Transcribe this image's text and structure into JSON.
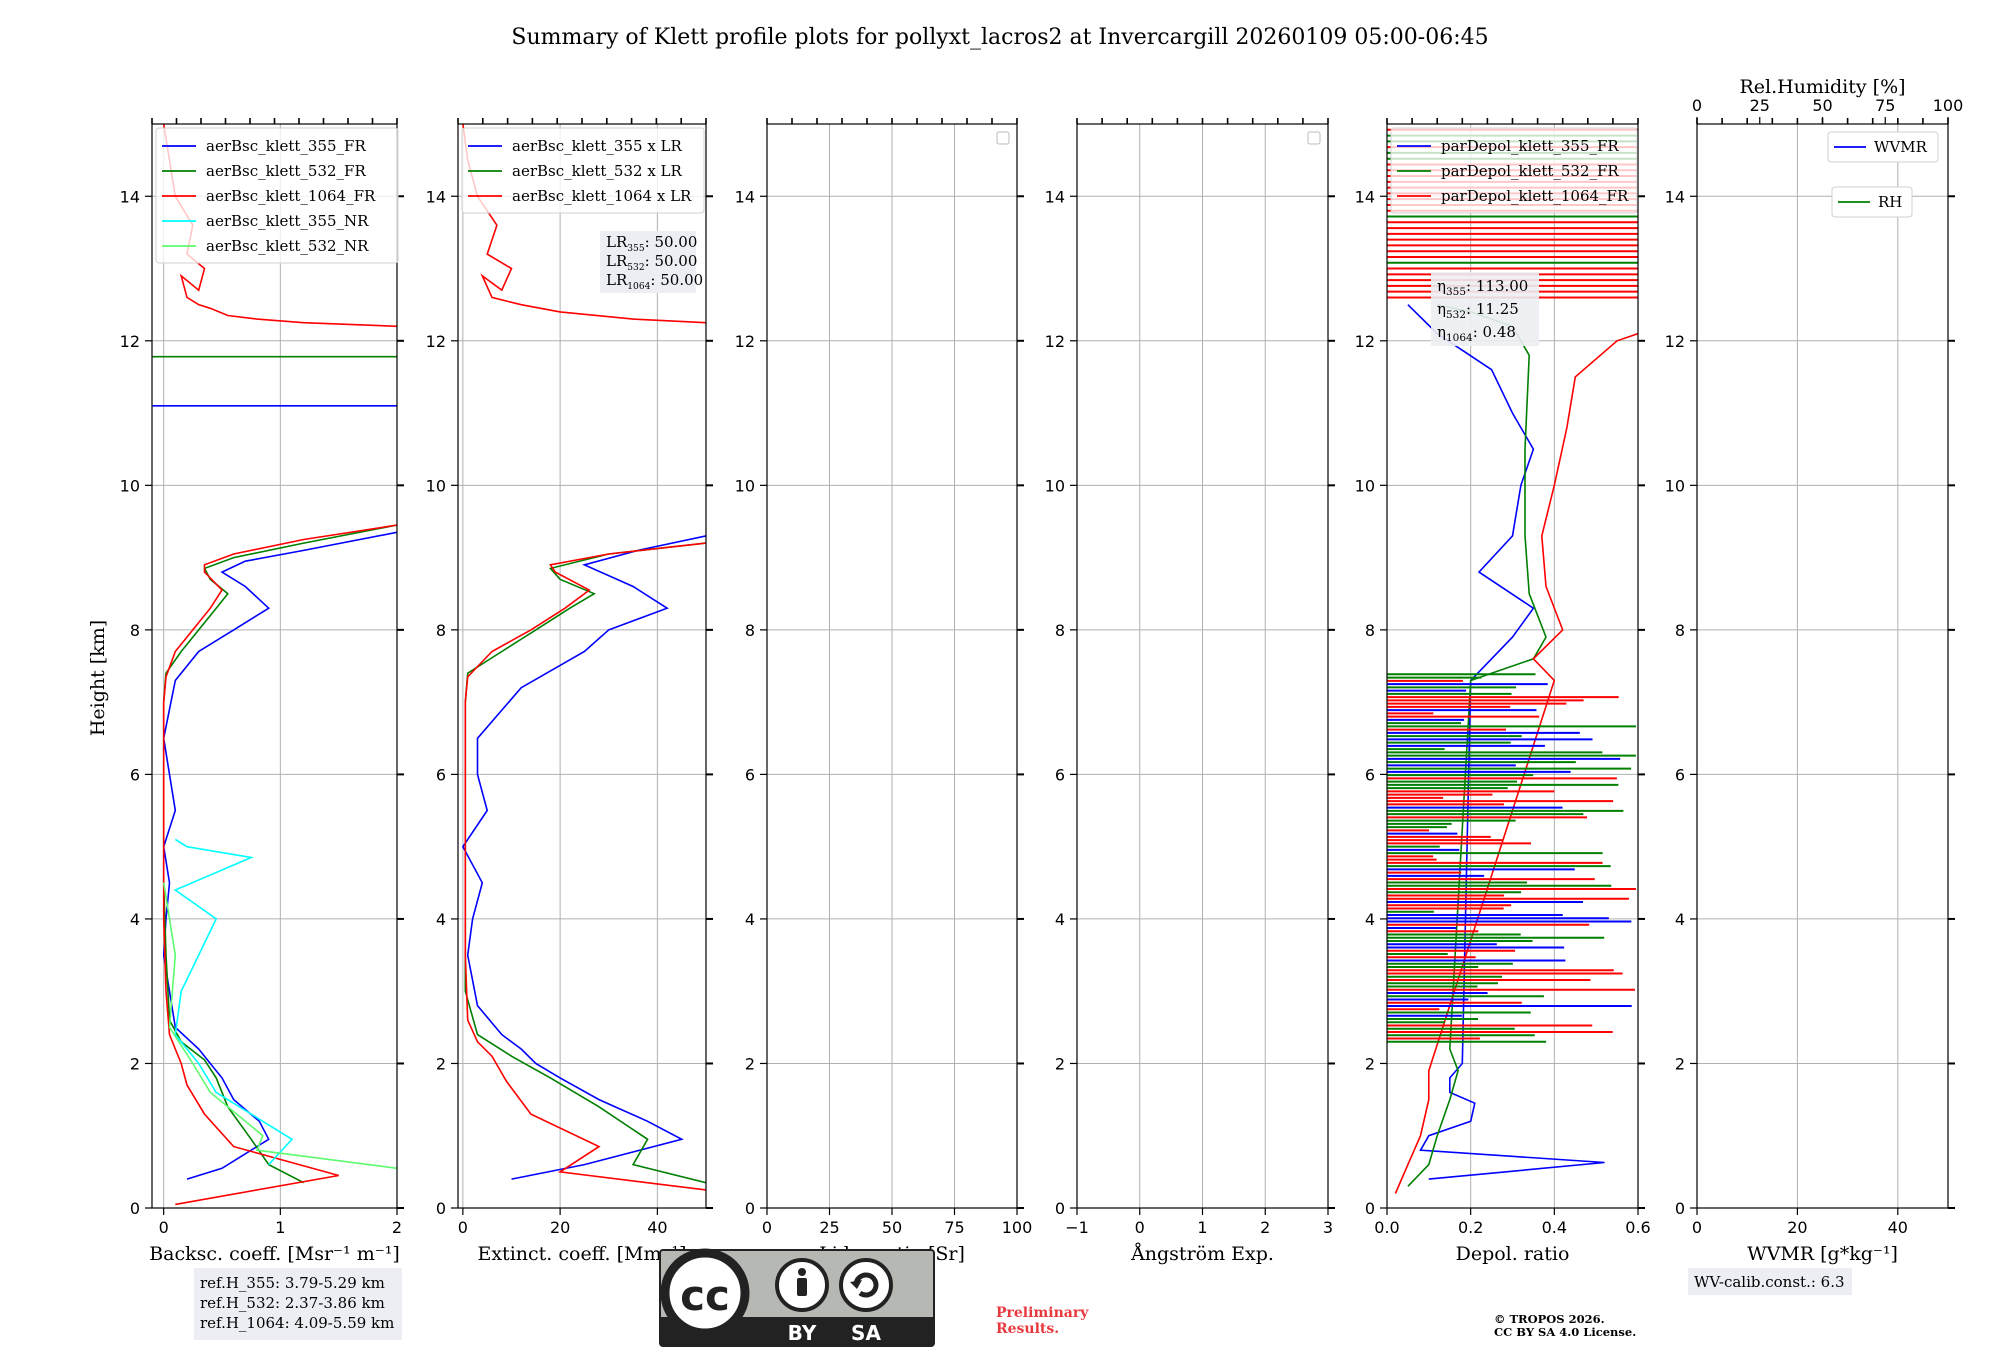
{
  "title": "Summary of Klett profile plots for pollyxt_lacros2 at Invercargill 20260109 05:00-06:45",
  "y_label": "Height [km]",
  "y_range": [
    0,
    15
  ],
  "y_ticks": [
    "0",
    "2",
    "4",
    "6",
    "8",
    "10",
    "12",
    "14"
  ],
  "colors": {
    "c355": "#0000ff",
    "c532": "#008000",
    "c1064": "#ff0000",
    "c355nr": "#00ffff",
    "c532nr": "#5dfc6e"
  },
  "panels": [
    {
      "id": "backscatter",
      "xlabel": "Backsc. coeff. [Msr⁻¹ m⁻¹]",
      "xlim": [
        -0.1,
        2.0
      ],
      "xticks": [
        {
          "v": 0,
          "t": "0"
        },
        {
          "v": 1,
          "t": "1"
        },
        {
          "v": 2,
          "t": "2"
        }
      ],
      "legend": [
        "aerBsc_klett_355_FR",
        "aerBsc_klett_532_FR",
        "aerBsc_klett_1064_FR",
        "aerBsc_klett_355_NR",
        "aerBsc_klett_532_NR"
      ],
      "info": [
        "ref.H_355: 3.79-5.29 km",
        "ref.H_532: 2.37-3.86 km",
        "ref.H_1064: 4.09-5.59 km"
      ]
    },
    {
      "id": "extinction",
      "xlabel": "Extinct. coeff. [Mm⁻¹]",
      "xlim": [
        -1,
        50
      ],
      "xticks": [
        {
          "v": 0,
          "t": "0"
        },
        {
          "v": 20,
          "t": "20"
        },
        {
          "v": 40,
          "t": "40"
        }
      ],
      "legend": [
        "aerBsc_klett_355 x LR",
        "aerBsc_klett_532 x LR",
        "aerBsc_klett_1064 x LR"
      ],
      "lr_box": [
        "LR355: 50.00",
        "LR532: 50.00",
        "LR1064: 50.00"
      ]
    },
    {
      "id": "lidar-ratio",
      "xlabel": "Lidar ratio [Sr]",
      "xlim": [
        0,
        100
      ],
      "xticks": [
        {
          "v": 0,
          "t": "0"
        },
        {
          "v": 25,
          "t": "25"
        },
        {
          "v": 50,
          "t": "50"
        },
        {
          "v": 75,
          "t": "75"
        },
        {
          "v": 100,
          "t": "100"
        }
      ]
    },
    {
      "id": "angstrom",
      "xlabel": "Ångström Exp.",
      "xlim": [
        -1,
        3
      ],
      "xticks": [
        {
          "v": -1,
          "t": "−1"
        },
        {
          "v": 0,
          "t": "0"
        },
        {
          "v": 1,
          "t": "1"
        },
        {
          "v": 2,
          "t": "2"
        },
        {
          "v": 3,
          "t": "3"
        }
      ]
    },
    {
      "id": "depol",
      "xlabel": "Depol. ratio",
      "xlim": [
        0,
        0.6
      ],
      "xticks": [
        {
          "v": 0,
          "t": "0.0"
        },
        {
          "v": 0.2,
          "t": "0.2"
        },
        {
          "v": 0.4,
          "t": "0.4"
        },
        {
          "v": 0.6,
          "t": "0.6"
        }
      ],
      "legend": [
        "parDepol_klett_355_FR",
        "parDepol_klett_532_FR",
        "parDepol_klett_1064_FR"
      ],
      "eta": [
        "η355: 113.00",
        "η532: 11.25",
        "η1064: 0.48"
      ]
    },
    {
      "id": "wvmr",
      "xlabel": "WVMR [g*kg⁻¹]",
      "xlim": [
        0,
        50
      ],
      "xticks": [
        {
          "v": 0,
          "t": "0"
        },
        {
          "v": 20,
          "t": "20"
        },
        {
          "v": 40,
          "t": "40"
        }
      ],
      "top_label": "Rel.Humidity [%]",
      "top_ticks": [
        {
          "v": 0,
          "t": "0"
        },
        {
          "v": 25,
          "t": "25"
        },
        {
          "v": 50,
          "t": "50"
        },
        {
          "v": 75,
          "t": "75"
        },
        {
          "v": 100,
          "t": "100"
        }
      ],
      "legend": [
        "WVMR",
        "RH"
      ],
      "info": "WV-calib.const.: 6.3"
    }
  ],
  "license": {
    "cc": "cc",
    "by": "BY",
    "sa": "SA"
  },
  "preliminary": [
    "Preliminary",
    "Results."
  ],
  "copyright": [
    "© TROPOS 2026.",
    "CC BY SA 4.0 License."
  ],
  "chart_data": {
    "type": "line",
    "title": "Summary of Klett profile plots for pollyxt_lacros2 at Invercargill 20260109 05:00-06:45",
    "ylabel": "Height [km]",
    "ylim": [
      0,
      15
    ],
    "panels": [
      {
        "name": "Backscatter",
        "xlabel": "Backsc. coeff. [Msr-1 m-1]",
        "xlim": [
          -0.1,
          2
        ],
        "series": [
          {
            "name": "aerBsc_klett_355_FR",
            "color": "#0000ff",
            "x": [
              0.2,
              0.5,
              0.9,
              0.82,
              0.6,
              0.5,
              0.4,
              0.3,
              0.1,
              0.05,
              0.0,
              0.02,
              0.05,
              0.0,
              0.1,
              0.05,
              0.0,
              0.1,
              0.3,
              0.6,
              0.9,
              0.7,
              0.5,
              0.7,
              1.2,
              2.0
            ],
            "y": [
              0.4,
              0.55,
              0.95,
              1.2,
              1.5,
              1.8,
              2.0,
              2.2,
              2.5,
              3.0,
              3.5,
              4.0,
              4.5,
              5.0,
              5.5,
              6.0,
              6.5,
              7.3,
              7.7,
              8.0,
              8.3,
              8.6,
              8.8,
              8.95,
              9.1,
              9.35
            ],
            "segments": [
              {
                "x": [
                  -0.1,
                  2.0
                ],
                "y": [
                  11.1,
                  11.1
                ]
              }
            ]
          },
          {
            "name": "aerBsc_klett_532_FR",
            "color": "#008000",
            "x": [
              1.2,
              0.9,
              0.75,
              0.55,
              0.45,
              0.35,
              0.15,
              0.05,
              0.02,
              0.0,
              0.0,
              0.0,
              0.02,
              0.15,
              0.3,
              0.45,
              0.55,
              0.4,
              0.35,
              0.6,
              1.2,
              2.0
            ],
            "y": [
              0.35,
              0.6,
              0.95,
              1.4,
              1.8,
              2.05,
              2.3,
              2.6,
              3.5,
              4.5,
              6.0,
              7.0,
              7.4,
              7.7,
              8.0,
              8.3,
              8.5,
              8.7,
              8.85,
              9.0,
              9.2,
              9.45
            ],
            "segments": [
              {
                "x": [
                  -0.1,
                  2.0
                ],
                "y": [
                  11.78,
                  11.78
                ]
              }
            ]
          },
          {
            "name": "aerBsc_klett_1064_FR",
            "color": "#ff0000",
            "x": [
              0.1,
              1.5,
              0.6,
              0.35,
              0.2,
              0.15,
              0.1,
              0.05,
              0.02,
              0.0,
              0.0,
              0.0,
              0.02,
              0.1,
              0.25,
              0.4,
              0.5,
              0.35,
              0.35,
              0.6,
              1.2,
              2.0
            ],
            "y": [
              0.05,
              0.45,
              0.85,
              1.3,
              1.7,
              2.0,
              2.2,
              2.4,
              3.0,
              4.0,
              5.5,
              7.0,
              7.35,
              7.7,
              8.0,
              8.3,
              8.55,
              8.8,
              8.9,
              9.05,
              9.25,
              9.45
            ],
            "segments": [
              {
                "x": [
                  0.0,
                  0.05,
                  0.1,
                  0.25,
                  0.2,
                  0.35,
                  0.3,
                  0.15,
                  0.2,
                  0.3,
                  0.4,
                  0.55,
                  0.8,
                  1.2,
                  2.0
                ],
                "y": [
                  15.0,
                  14.5,
                  14.0,
                  13.6,
                  13.2,
                  13.0,
                  12.7,
                  12.9,
                  12.6,
                  12.5,
                  12.45,
                  12.35,
                  12.3,
                  12.25,
                  12.2
                ]
              }
            ]
          },
          {
            "name": "aerBsc_klett_355_NR",
            "color": "#00ffff",
            "x": [
              0.9,
              1.1,
              0.85,
              0.45,
              0.3,
              0.1,
              0.15,
              0.3,
              0.45,
              0.1,
              0.75,
              0.2,
              0.1
            ],
            "y": [
              0.6,
              0.95,
              1.2,
              1.6,
              2.0,
              2.4,
              3.0,
              3.5,
              4.0,
              4.4,
              4.85,
              5.0,
              5.1
            ]
          },
          {
            "name": "aerBsc_klett_532_NR",
            "color": "#5dfc6e",
            "x": [
              2.0,
              0.8,
              0.85,
              0.4,
              0.25,
              0.05,
              0.1,
              0.0
            ],
            "y": [
              0.55,
              0.8,
              1.0,
              1.6,
              2.0,
              2.5,
              3.5,
              4.5
            ]
          }
        ]
      },
      {
        "name": "Extinction",
        "xlabel": "Extinct. coeff. [Mm-1]",
        "xlim": [
          -1,
          50
        ],
        "series": [
          {
            "name": "aerBsc_klett_355 x LR",
            "color": "#0000ff",
            "x": [
              10,
              25,
              45,
              38,
              28,
              20,
              15,
              12,
              8,
              3,
              1,
              2,
              4,
              0,
              5,
              3,
              3,
              12,
              25,
              30,
              42,
              35,
              25,
              36,
              50
            ],
            "y": [
              0.4,
              0.6,
              0.95,
              1.2,
              1.5,
              1.8,
              2.0,
              2.2,
              2.4,
              2.8,
              3.5,
              4.0,
              4.5,
              5.0,
              5.5,
              6.0,
              6.5,
              7.2,
              7.7,
              8.0,
              8.3,
              8.6,
              8.9,
              9.1,
              9.3
            ]
          },
          {
            "name": "aerBsc_klett_532 x LR",
            "color": "#008000",
            "x": [
              50,
              35,
              38,
              28,
              18,
              10,
              3,
              0.5,
              0.5,
              0.5,
              1,
              8,
              15,
              22,
              27,
              20,
              18,
              30,
              50
            ],
            "y": [
              0.35,
              0.6,
              0.95,
              1.4,
              1.8,
              2.1,
              2.4,
              3.0,
              5.0,
              7.0,
              7.4,
              7.7,
              8.0,
              8.3,
              8.5,
              8.7,
              8.85,
              9.05,
              9.2
            ]
          },
          {
            "name": "aerBsc_klett_1064 x LR",
            "color": "#ff0000",
            "x": [
              50,
              20,
              28,
              14,
              9,
              6,
              3,
              1,
              0.5,
              0.5,
              0.5,
              1,
              6,
              14,
              21,
              26,
              19,
              18,
              30,
              50
            ],
            "y": [
              0.25,
              0.5,
              0.85,
              1.3,
              1.75,
              2.1,
              2.3,
              2.6,
              3.5,
              5.5,
              7.0,
              7.35,
              7.7,
              8.0,
              8.3,
              8.55,
              8.8,
              8.9,
              9.05,
              9.2
            ],
            "segments": [
              {
                "x": [
                  0,
                  1,
                  3,
                  7,
                  5,
                  10,
                  8,
                  4,
                  6,
                  12,
                  20,
                  35,
                  50
                ],
                "y": [
                  15.0,
                  14.5,
                  14.0,
                  13.6,
                  13.2,
                  13.0,
                  12.7,
                  12.9,
                  12.6,
                  12.5,
                  12.4,
                  12.3,
                  12.25
                ]
              }
            ]
          }
        ]
      },
      {
        "name": "Lidar ratio",
        "xlabel": "Lidar ratio [Sr]",
        "xlim": [
          0,
          100
        ],
        "series": []
      },
      {
        "name": "Angstrom",
        "xlabel": "Angstrom Exp.",
        "xlim": [
          -1,
          3
        ],
        "series": []
      },
      {
        "name": "Depolarization",
        "xlabel": "Depol. ratio",
        "xlim": [
          0,
          0.6
        ],
        "series": [
          {
            "name": "parDepol_klett_355_FR",
            "color": "#0000ff",
            "x": [
              0.1,
              0.52,
              0.08,
              0.1,
              0.2,
              0.21,
              0.15,
              0.15,
              0.18,
              0.2,
              0.25,
              0.3,
              0.35,
              0.22,
              0.3,
              0.32,
              0.35,
              0.3,
              0.25,
              0.12,
              0.05
            ],
            "y": [
              0.4,
              0.63,
              0.8,
              1.0,
              1.2,
              1.45,
              1.6,
              1.8,
              2.0,
              7.3,
              7.6,
              7.9,
              8.3,
              8.8,
              9.3,
              10.0,
              10.5,
              11.0,
              11.6,
              12.1,
              12.5
            ]
          },
          {
            "name": "parDepol_klett_532_FR",
            "color": "#008000",
            "x": [
              0.05,
              0.1,
              0.12,
              0.15,
              0.17,
              0.15,
              0.2,
              0.35,
              0.38,
              0.34,
              0.33,
              0.33,
              0.34,
              0.3,
              0.2,
              0.12
            ],
            "y": [
              0.3,
              0.6,
              1.0,
              1.5,
              1.9,
              2.2,
              7.3,
              7.6,
              7.9,
              8.5,
              9.3,
              10.5,
              11.8,
              12.2,
              12.4,
              12.5
            ]
          },
          {
            "name": "parDepol_klett_1064_FR",
            "color": "#ff0000",
            "x": [
              0.02,
              0.05,
              0.08,
              0.1,
              0.1,
              0.4,
              0.35,
              0.42,
              0.38,
              0.37,
              0.4,
              0.43,
              0.45,
              0.55,
              0.6
            ],
            "y": [
              0.2,
              0.6,
              1.0,
              1.5,
              1.9,
              7.3,
              7.6,
              8.0,
              8.6,
              9.3,
              10.0,
              10.8,
              11.5,
              12.0,
              12.1
            ]
          }
        ]
      },
      {
        "name": "WVMR / RH",
        "xlabel": "WVMR [g*kg-1]",
        "xlim": [
          0,
          50
        ],
        "x2label": "Rel.Humidity [%]",
        "x2lim": [
          0,
          100
        ],
        "series": [
          {
            "name": "WVMR",
            "color": "#0000ff",
            "x": [],
            "y": []
          },
          {
            "name": "RH",
            "color": "#008000",
            "x": [],
            "y": []
          }
        ]
      }
    ]
  }
}
